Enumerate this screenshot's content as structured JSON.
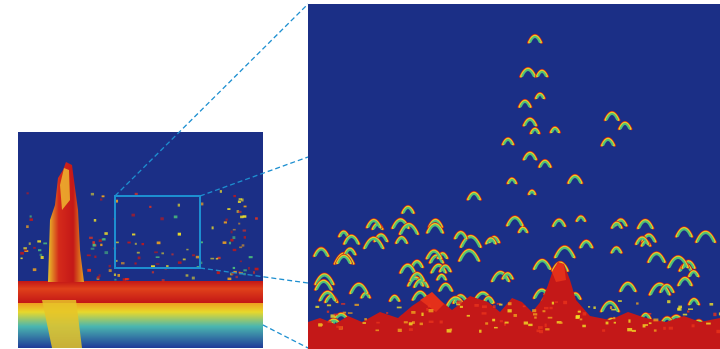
{
  "figure": {
    "overview_panel": {
      "name": "echogram-overview",
      "background": "#1b2f86"
    },
    "zoom_panel": {
      "name": "echogram-zoom",
      "background": "#1b2f86"
    },
    "zoom_indicator": {
      "box_color": "#1d8fd0",
      "leader_color": "#1d8fd0",
      "leader_style": "dashed"
    },
    "echo_palette": [
      "#c41818",
      "#e8331b",
      "#f0a21e",
      "#f3e226",
      "#4cc07a",
      "#3f9fd6"
    ]
  }
}
